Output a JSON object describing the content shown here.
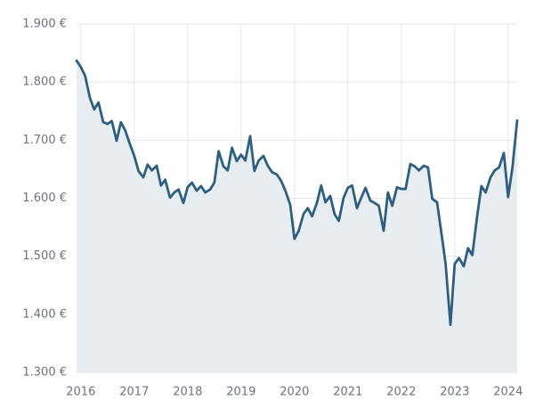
{
  "chart_data": {
    "type": "area-line",
    "color": "#2e5f7e",
    "fill": "#e8edf2",
    "grid": true,
    "x": [
      2015.92,
      2016,
      2016.08,
      2016.17,
      2016.25,
      2016.33,
      2016.42,
      2016.5,
      2016.58,
      2016.67,
      2016.75,
      2016.83,
      2016.92,
      2017,
      2017.08,
      2017.17,
      2017.25,
      2017.33,
      2017.42,
      2017.5,
      2017.58,
      2017.67,
      2017.75,
      2017.83,
      2017.92,
      2018,
      2018.08,
      2018.17,
      2018.25,
      2018.33,
      2018.42,
      2018.5,
      2018.58,
      2018.67,
      2018.75,
      2018.83,
      2018.92,
      2019,
      2019.08,
      2019.17,
      2019.25,
      2019.33,
      2019.42,
      2019.5,
      2019.58,
      2019.67,
      2019.75,
      2019.83,
      2019.92,
      2020,
      2020.08,
      2020.17,
      2020.25,
      2020.33,
      2020.42,
      2020.5,
      2020.58,
      2020.67,
      2020.75,
      2020.83,
      2020.92,
      2021,
      2021.08,
      2021.17,
      2021.25,
      2021.33,
      2021.42,
      2021.5,
      2021.58,
      2021.67,
      2021.75,
      2021.83,
      2021.92,
      2022,
      2022.08,
      2022.17,
      2022.25,
      2022.33,
      2022.42,
      2022.5,
      2022.58,
      2022.67,
      2022.75,
      2022.83,
      2022.92,
      2023,
      2023.08,
      2023.17,
      2023.25,
      2023.33,
      2023.42,
      2023.5,
      2023.58,
      2023.67,
      2023.75,
      2023.83,
      2023.92,
      2024,
      2024.08,
      2024.17
    ],
    "values": [
      1837,
      1826,
      1811,
      1773,
      1753,
      1765,
      1731,
      1728,
      1733,
      1699,
      1731,
      1717,
      1693,
      1673,
      1647,
      1636,
      1658,
      1648,
      1656,
      1622,
      1632,
      1601,
      1610,
      1615,
      1592,
      1619,
      1627,
      1613,
      1621,
      1610,
      1615,
      1627,
      1681,
      1655,
      1648,
      1687,
      1664,
      1675,
      1665,
      1707,
      1647,
      1665,
      1673,
      1656,
      1645,
      1641,
      1630,
      1613,
      1589,
      1530,
      1544,
      1573,
      1583,
      1569,
      1592,
      1622,
      1593,
      1604,
      1573,
      1561,
      1601,
      1618,
      1622,
      1583,
      1601,
      1618,
      1596,
      1592,
      1587,
      1544,
      1610,
      1587,
      1619,
      1616,
      1616,
      1659,
      1655,
      1648,
      1656,
      1653,
      1599,
      1593,
      1541,
      1487,
      1382,
      1487,
      1497,
      1483,
      1514,
      1502,
      1569,
      1621,
      1610,
      1636,
      1648,
      1653,
      1678,
      1602,
      1652,
      1734
    ],
    "xlim": [
      2015.92,
      2024.17
    ],
    "xticks": [
      2016,
      2017,
      2018,
      2019,
      2020,
      2021,
      2022,
      2023,
      2024
    ],
    "ylim": [
      1300,
      1900
    ],
    "yticks": [
      {
        "value": 1300,
        "label": "1.300 €"
      },
      {
        "value": 1400,
        "label": "1.400 €"
      },
      {
        "value": 1500,
        "label": "1.500 €"
      },
      {
        "value": 1600,
        "label": "1.600 €"
      },
      {
        "value": 1700,
        "label": "1.700 €"
      },
      {
        "value": 1800,
        "label": "1.800 €"
      },
      {
        "value": 1900,
        "label": "1.900 €"
      }
    ]
  }
}
